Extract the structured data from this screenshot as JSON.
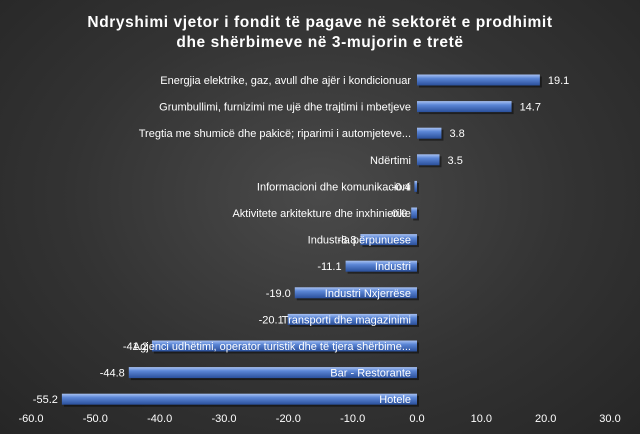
{
  "chart_data": {
    "type": "bar",
    "orientation": "horizontal",
    "title": "Ndryshimi vjetor i fondit të pagave në sektorët e prodhimit dhe shërbimeve në 3-mujorin e tretë",
    "title_lines": [
      "Ndryshimi vjetor i fondit të pagave në sektorët e prodhimit",
      "dhe shërbimeve në 3-mujorin e tretë"
    ],
    "categories": [
      "Energjia elektrike, gaz, avull dhe ajër i kondicionuar",
      "Grumbullimi, furnizimi me ujë dhe trajtimi i mbetjeve",
      "Tregtia me shumicë dhe pakicë; riparimi i automjeteve...",
      "Ndërtimi",
      "Informacioni dhe komunikacioni",
      "Aktivitete arkitekture dhe inxhinierike",
      "Industria përpunuese",
      "Industri",
      "Industri Nxjerrëse",
      "Transporti dhe magazinimi",
      "Agjenci udhëtimi, operator turistik dhe të tjera shërbime...",
      "Bar - Restorante",
      "Hotele"
    ],
    "values": [
      19.1,
      14.7,
      3.8,
      3.5,
      -0.4,
      -0.9,
      -8.8,
      -11.1,
      -19.0,
      -20.1,
      -41.2,
      -44.8,
      -55.2
    ],
    "value_labels": [
      "19.1",
      "14.7",
      "3.8",
      "3.5",
      "-0.4",
      "-0.9",
      "-8.8",
      "-11.1",
      "-19.0",
      "-20.1",
      "-41.2",
      "-44.8",
      "-55.2"
    ],
    "xlim": [
      -60,
      30
    ],
    "xticks": [
      "-60.0",
      "-50.0",
      "-40.0",
      "-30.0",
      "-20.0",
      "-10.0",
      "0.0",
      "10.0",
      "20.0",
      "30.0"
    ],
    "grid": false,
    "legend": "none",
    "colors": {
      "bar": "#4472c4",
      "bar_light": "#8fb0ee",
      "bar_dark": "#2a4f9a",
      "text": "#ffffff"
    }
  }
}
